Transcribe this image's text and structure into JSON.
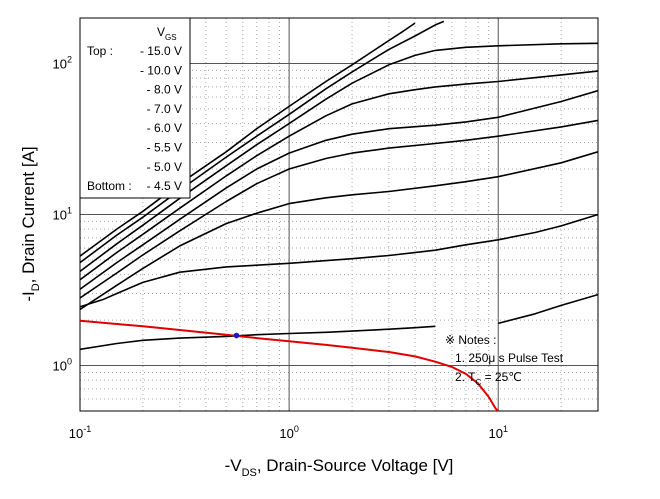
{
  "chart_data": {
    "type": "line",
    "title": "",
    "xlabel": {
      "prefix": "-V",
      "sub": "DS",
      "rest": ", Drain-Source Voltage [V]"
    },
    "ylabel": {
      "prefix": "-I",
      "sub": "D",
      "rest": ", Drain Current [A]"
    },
    "x_scale": "log",
    "y_scale": "log",
    "xlim": [
      0.1,
      30
    ],
    "ylim": [
      0.5,
      200
    ],
    "x_ticks": [
      {
        "value": 0.1,
        "base": "10",
        "exp": "-1"
      },
      {
        "value": 1,
        "base": "10",
        "exp": "0"
      },
      {
        "value": 10,
        "base": "10",
        "exp": "1"
      }
    ],
    "y_ticks": [
      {
        "value": 1,
        "base": "10",
        "exp": "0"
      },
      {
        "value": 10,
        "base": "10",
        "exp": "1"
      },
      {
        "value": 100,
        "base": "10",
        "exp": "2"
      }
    ],
    "grid": true,
    "legend": {
      "placement": "top-left",
      "header": {
        "main": "V",
        "sub": "GS"
      },
      "rows": [
        {
          "prefix": "Top :",
          "value": "- 15.0 V"
        },
        {
          "prefix": "",
          "value": "- 10.0 V"
        },
        {
          "prefix": "",
          "value": "- 8.0 V"
        },
        {
          "prefix": "",
          "value": "- 7.0 V"
        },
        {
          "prefix": "",
          "value": "- 6.0 V"
        },
        {
          "prefix": "",
          "value": "- 5.5 V"
        },
        {
          "prefix": "",
          "value": "- 5.0 V"
        },
        {
          "prefix": "Bottom :",
          "value": "- 4.5 V"
        }
      ]
    },
    "notes": {
      "header": "※ Notes :",
      "line1": "1. 250μ s Pulse Test",
      "line2": {
        "main": "2. T",
        "sub": "C",
        "rest": " = 25℃"
      }
    },
    "colors": {
      "curves": "#000000",
      "load_line": "#e00000",
      "marker": "#1a1acc"
    },
    "series": [
      {
        "values": [
          [
            0.1,
            5.3
          ],
          [
            0.15,
            8.0
          ],
          [
            0.2,
            10.5
          ],
          [
            0.3,
            16.0
          ],
          [
            0.5,
            26.0
          ],
          [
            0.7,
            37.0
          ],
          [
            1.0,
            52.0
          ],
          [
            1.5,
            76.0
          ],
          [
            2.0,
            98.0
          ],
          [
            2.5,
            120.0
          ],
          [
            3.0,
            142.0
          ],
          [
            3.5,
            163.0
          ],
          [
            4.0,
            185.0
          ]
        ]
      },
      {
        "values": [
          [
            0.1,
            4.8
          ],
          [
            0.15,
            7.3
          ],
          [
            0.2,
            9.6
          ],
          [
            0.3,
            14.5
          ],
          [
            0.5,
            24.0
          ],
          [
            0.7,
            33.0
          ],
          [
            1.0,
            46.0
          ],
          [
            1.5,
            68.0
          ],
          [
            2.0,
            88.0
          ],
          [
            3.0,
            124.0
          ],
          [
            4.0,
            152.0
          ],
          [
            5.0,
            180.0
          ],
          [
            5.5,
            190.0
          ]
        ]
      },
      {
        "values": [
          [
            0.1,
            4.2
          ],
          [
            0.15,
            6.4
          ],
          [
            0.2,
            8.5
          ],
          [
            0.3,
            12.8
          ],
          [
            0.5,
            21.0
          ],
          [
            0.7,
            29.0
          ],
          [
            1.0,
            40.0
          ],
          [
            1.5,
            58.0
          ],
          [
            2.0,
            74.0
          ],
          [
            3.0,
            98.0
          ],
          [
            4.0,
            113.0
          ],
          [
            5.0,
            122.0
          ],
          [
            7.0,
            128.0
          ],
          [
            10.0,
            131.0
          ],
          [
            20.0,
            135.0
          ],
          [
            30.0,
            136.0
          ]
        ]
      },
      {
        "values": [
          [
            0.1,
            3.7
          ],
          [
            0.15,
            5.6
          ],
          [
            0.2,
            7.4
          ],
          [
            0.3,
            11.0
          ],
          [
            0.5,
            18.0
          ],
          [
            0.7,
            24.5
          ],
          [
            1.0,
            33.0
          ],
          [
            1.5,
            45.0
          ],
          [
            2.0,
            54.0
          ],
          [
            3.0,
            63.0
          ],
          [
            4.0,
            67.0
          ],
          [
            5.0,
            70.0
          ],
          [
            7.0,
            73.0
          ],
          [
            10.0,
            76.0
          ],
          [
            20.0,
            84.0
          ],
          [
            30.0,
            89.0
          ]
        ]
      },
      {
        "values": [
          [
            0.1,
            3.2
          ],
          [
            0.15,
            4.8
          ],
          [
            0.2,
            6.3
          ],
          [
            0.3,
            9.3
          ],
          [
            0.5,
            15.0
          ],
          [
            0.7,
            20.0
          ],
          [
            1.0,
            25.5
          ],
          [
            1.5,
            31.0
          ],
          [
            2.0,
            34.0
          ],
          [
            3.0,
            37.0
          ],
          [
            5.0,
            39.0
          ],
          [
            7.0,
            41.0
          ],
          [
            10.0,
            44.0
          ],
          [
            20.0,
            56.0
          ],
          [
            30.0,
            66.0
          ]
        ]
      },
      {
        "values": [
          [
            0.1,
            2.8
          ],
          [
            0.15,
            4.1
          ],
          [
            0.2,
            5.4
          ],
          [
            0.3,
            7.8
          ],
          [
            0.5,
            12.2
          ],
          [
            0.7,
            16.0
          ],
          [
            1.0,
            20.0
          ],
          [
            1.5,
            23.5
          ],
          [
            2.0,
            25.5
          ],
          [
            3.0,
            27.5
          ],
          [
            5.0,
            29.5
          ],
          [
            7.0,
            31.0
          ],
          [
            10.0,
            33.0
          ],
          [
            20.0,
            38.0
          ],
          [
            30.0,
            42.0
          ]
        ]
      },
      {
        "values": [
          [
            0.1,
            2.35
          ],
          [
            0.15,
            3.4
          ],
          [
            0.2,
            4.4
          ],
          [
            0.3,
            6.2
          ],
          [
            0.5,
            8.7
          ],
          [
            0.7,
            10.2
          ],
          [
            1.0,
            11.8
          ],
          [
            1.5,
            12.9
          ],
          [
            2.0,
            13.5
          ],
          [
            3.0,
            14.2
          ],
          [
            5.0,
            15.5
          ],
          [
            7.0,
            16.5
          ],
          [
            10.0,
            17.8
          ],
          [
            20.0,
            22.0
          ],
          [
            30.0,
            26.0
          ]
        ]
      },
      {
        "values": [
          [
            0.1,
            2.45
          ],
          [
            0.13,
            2.75
          ],
          [
            0.15,
            3.0
          ],
          [
            0.2,
            3.55
          ],
          [
            0.3,
            4.15
          ],
          [
            0.5,
            4.5
          ],
          [
            0.7,
            4.62
          ],
          [
            1.0,
            4.75
          ],
          [
            2.0,
            5.1
          ],
          [
            3.0,
            5.35
          ],
          [
            5.0,
            5.8
          ],
          [
            7.0,
            6.3
          ],
          [
            10.0,
            6.8
          ],
          [
            15.0,
            7.6
          ],
          [
            20.0,
            8.4
          ],
          [
            30.0,
            10.0
          ]
        ]
      },
      {
        "values": [
          [
            0.1,
            1.28
          ],
          [
            0.15,
            1.4
          ],
          [
            0.2,
            1.47
          ],
          [
            0.3,
            1.52
          ],
          [
            0.5,
            1.56
          ],
          [
            0.7,
            1.6
          ],
          [
            1.0,
            1.63
          ],
          [
            1.5,
            1.66
          ],
          [
            2.0,
            1.69
          ],
          [
            3.0,
            1.74
          ],
          [
            4.0,
            1.78
          ],
          [
            5.0,
            1.82
          ]
        ]
      },
      {
        "values": [
          [
            10.0,
            1.9
          ],
          [
            15.0,
            2.2
          ],
          [
            20.0,
            2.5
          ],
          [
            30.0,
            2.95
          ]
        ]
      }
    ],
    "load_line": {
      "values": [
        [
          0.1,
          1.98
        ],
        [
          0.2,
          1.82
        ],
        [
          0.5,
          1.6
        ],
        [
          0.7,
          1.52
        ],
        [
          1.0,
          1.45
        ],
        [
          1.5,
          1.37
        ],
        [
          2.0,
          1.31
        ],
        [
          3.0,
          1.23
        ],
        [
          4.0,
          1.15
        ],
        [
          5.0,
          1.06
        ],
        [
          6.0,
          0.98
        ],
        [
          7.0,
          0.88
        ],
        [
          8.0,
          0.76
        ],
        [
          9.0,
          0.62
        ],
        [
          9.7,
          0.52
        ],
        [
          10.0,
          0.5
        ]
      ]
    },
    "operating_point": {
      "x": 0.56,
      "y": 1.58
    }
  }
}
